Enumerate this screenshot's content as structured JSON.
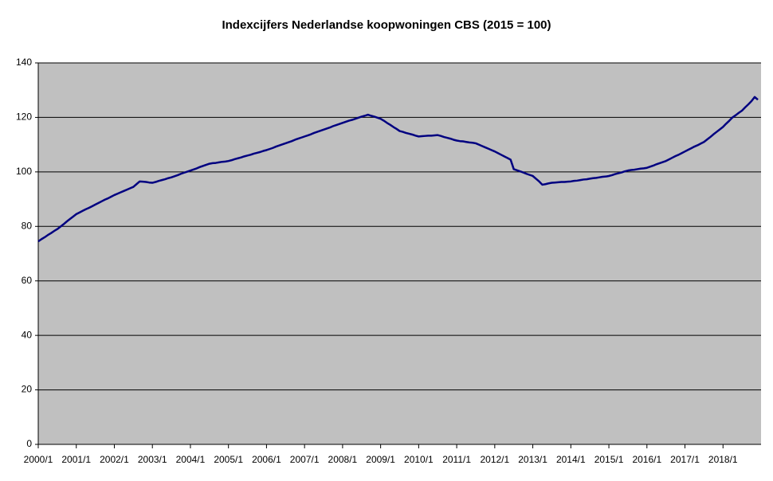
{
  "chart_data": {
    "type": "line",
    "title": "Indexcijfers Nederlandse koopwoningen CBS (2015 = 100)",
    "categories": [
      "2000/1",
      null,
      null,
      null,
      null,
      null,
      null,
      null,
      null,
      null,
      null,
      null,
      "2001/1",
      null,
      null,
      null,
      null,
      null,
      null,
      null,
      null,
      null,
      null,
      null,
      "2002/1",
      null,
      null,
      null,
      null,
      null,
      null,
      null,
      null,
      null,
      null,
      null,
      "2003/1",
      null,
      null,
      null,
      null,
      null,
      null,
      null,
      null,
      null,
      null,
      null,
      "2004/1",
      null,
      null,
      null,
      null,
      null,
      null,
      null,
      null,
      null,
      null,
      null,
      "2005/1",
      null,
      null,
      null,
      null,
      null,
      null,
      null,
      null,
      null,
      null,
      null,
      "2006/1",
      null,
      null,
      null,
      null,
      null,
      null,
      null,
      null,
      null,
      null,
      null,
      "2007/1",
      null,
      null,
      null,
      null,
      null,
      null,
      null,
      null,
      null,
      null,
      null,
      "2008/1",
      null,
      null,
      null,
      null,
      null,
      null,
      null,
      null,
      null,
      null,
      null,
      "2009/1",
      null,
      null,
      null,
      null,
      null,
      null,
      null,
      null,
      null,
      null,
      null,
      "2010/1",
      null,
      null,
      null,
      null,
      null,
      null,
      null,
      null,
      null,
      null,
      null,
      "2011/1",
      null,
      null,
      null,
      null,
      null,
      null,
      null,
      null,
      null,
      null,
      null,
      "2012/1",
      null,
      null,
      null,
      null,
      null,
      null,
      null,
      null,
      null,
      null,
      null,
      "2013/1",
      null,
      null,
      null,
      null,
      null,
      null,
      null,
      null,
      null,
      null,
      null,
      "2014/1",
      null,
      null,
      null,
      null,
      null,
      null,
      null,
      null,
      null,
      null,
      null,
      "2015/1",
      null,
      null,
      null,
      null,
      null,
      null,
      null,
      null,
      null,
      null,
      null,
      "2016/1",
      null,
      null,
      null,
      null,
      null,
      null,
      null,
      null,
      null,
      null,
      null,
      "2017/1",
      null,
      null,
      null,
      null,
      null,
      null,
      null,
      null,
      null,
      null,
      null,
      "2018/1",
      null,
      null,
      null,
      null,
      null,
      null,
      null,
      null,
      null,
      null,
      null
    ],
    "values": [
      74.5,
      75.3,
      76,
      76.8,
      77.5,
      78.3,
      79,
      79.9,
      80.8,
      81.8,
      82.7,
      83.6,
      84.5,
      85.1,
      85.7,
      86.3,
      86.8,
      87.4,
      88,
      88.6,
      89.2,
      89.8,
      90.3,
      90.9,
      91.5,
      92,
      92.5,
      93,
      93.5,
      94,
      94.5,
      95.5,
      96.5,
      96.4,
      96.3,
      96.1,
      96,
      96.3,
      96.7,
      97,
      97.3,
      97.7,
      98,
      98.4,
      98.8,
      99.3,
      99.7,
      100.1,
      100.5,
      100.9,
      101.3,
      101.8,
      102.2,
      102.6,
      103,
      103.2,
      103.3,
      103.5,
      103.7,
      103.8,
      104,
      104.3,
      104.7,
      105,
      105.3,
      105.7,
      106,
      106.3,
      106.7,
      107,
      107.3,
      107.7,
      108,
      108.4,
      108.8,
      109.3,
      109.7,
      110.1,
      110.5,
      110.9,
      111.3,
      111.8,
      112.2,
      112.6,
      113,
      113.4,
      113.8,
      114.3,
      114.7,
      115.1,
      115.5,
      115.9,
      116.3,
      116.8,
      117.2,
      117.6,
      118,
      118.4,
      118.8,
      119.1,
      119.5,
      119.9,
      120.3,
      120.6,
      121,
      120.6,
      120.3,
      119.9,
      119.5,
      118.8,
      118,
      117.3,
      116.5,
      115.8,
      115,
      114.7,
      114.3,
      114,
      113.7,
      113.3,
      113,
      113.1,
      113.2,
      113.3,
      113.3,
      113.4,
      113.5,
      113.2,
      112.8,
      112.5,
      112.2,
      111.8,
      111.5,
      111.3,
      111.2,
      111,
      110.8,
      110.7,
      110.5,
      110,
      109.5,
      109,
      108.5,
      108,
      107.5,
      106.9,
      106.3,
      105.7,
      105.1,
      104.5,
      101,
      100.6,
      100.2,
      99.8,
      99.3,
      98.9,
      98.5,
      97.5,
      96.5,
      95.3,
      95.5,
      95.8,
      96,
      96.1,
      96.2,
      96.3,
      96.3,
      96.4,
      96.5,
      96.7,
      96.8,
      97,
      97.2,
      97.3,
      97.5,
      97.7,
      97.8,
      98,
      98.2,
      98.3,
      98.5,
      98.8,
      99.2,
      99.5,
      99.8,
      100.2,
      100.5,
      100.7,
      100.8,
      101,
      101.2,
      101.3,
      101.5,
      101.9,
      102.3,
      102.8,
      103.2,
      103.6,
      104,
      104.6,
      105.2,
      105.8,
      106.3,
      106.9,
      107.5,
      108.1,
      108.7,
      109.3,
      109.8,
      110.4,
      111,
      111.9,
      112.8,
      113.8,
      114.7,
      115.6,
      116.5,
      117.7,
      118.8,
      120,
      120.8,
      121.7,
      122.5,
      123.7,
      124.8,
      126,
      127.5,
      126.5
    ],
    "color": "#000080",
    "plot_background": "#c0c0c0",
    "ylim": [
      0,
      140
    ],
    "yticks": [
      0,
      20,
      40,
      60,
      80,
      100,
      120,
      140
    ],
    "grid": true
  }
}
